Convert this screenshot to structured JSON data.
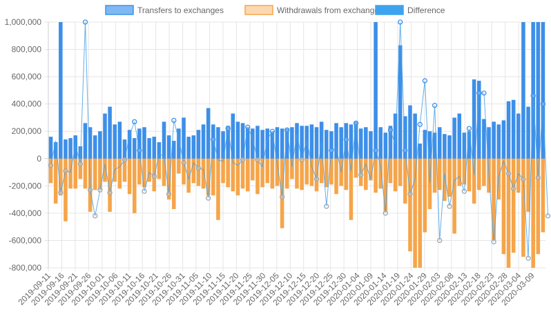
{
  "chart_data": {
    "type": "bar",
    "legend": {
      "position": "top",
      "items": [
        {
          "label": "Transfers to exchanges",
          "fill": "#7fb8f2",
          "stroke": "#3d93e8"
        },
        {
          "label": "Withdrawals from exchanges",
          "fill": "#fcd8b0",
          "stroke": "#f5a54a"
        },
        {
          "label": "Difference",
          "fill": "#3ea3ee",
          "stroke": "#3ea3ee"
        }
      ]
    },
    "colors": {
      "transfers": "#3d8fe8",
      "withdrawals": "#f5a54a",
      "difference": "#46a0e8",
      "grid": "#e5e5e5",
      "tick_text": "#666666"
    },
    "ylim": [
      -800000,
      1000000
    ],
    "yticks": [
      {
        "value": 1000000,
        "label": "1,000,000"
      },
      {
        "value": 800000,
        "label": "800,000"
      },
      {
        "value": 600000,
        "label": "600,000"
      },
      {
        "value": 400000,
        "label": "400,000"
      },
      {
        "value": 200000,
        "label": "200,000"
      },
      {
        "value": 0,
        "label": "0"
      },
      {
        "value": -200000,
        "label": "-200,000"
      },
      {
        "value": -400000,
        "label": "-400,000"
      },
      {
        "value": -600000,
        "label": "-600,000"
      },
      {
        "value": -800000,
        "label": "-800,000"
      }
    ],
    "x_tick_labels": [
      "2019-09-11",
      "2019-09-16",
      "2019-09-21",
      "2019-09-26",
      "2019-10-01",
      "2019-10-06",
      "2019-10-11",
      "2019-10-16",
      "2019-10-21",
      "2019-10-26",
      "2019-10-31",
      "2019-11-05",
      "2019-11-10",
      "2019-11-15",
      "2019-11-20",
      "2019-11-25",
      "2019-11-30",
      "2019-12-05",
      "2019-12-10",
      "2019-12-15",
      "2019-12-20",
      "2019-12-25",
      "2019-12-30",
      "2020-01-04",
      "2020-01-09",
      "2020-01-14",
      "2020-01-19",
      "2020-01-24",
      "2020-01-29",
      "2020-02-03",
      "2020-02-08",
      "2020-02-13",
      "2020-02-18",
      "2020-02-23",
      "2020-02-28",
      "2020-03-04",
      "2020-03-09"
    ],
    "series": [
      {
        "name": "Transfers to exchanges",
        "kind": "bar",
        "values": [
          160000,
          120000,
          1050000,
          140000,
          150000,
          170000,
          90000,
          260000,
          230000,
          170000,
          200000,
          330000,
          380000,
          250000,
          270000,
          140000,
          210000,
          150000,
          220000,
          230000,
          150000,
          160000,
          120000,
          270000,
          170000,
          130000,
          220000,
          300000,
          160000,
          170000,
          210000,
          250000,
          370000,
          250000,
          230000,
          200000,
          240000,
          330000,
          270000,
          260000,
          230000,
          220000,
          240000,
          210000,
          220000,
          200000,
          230000,
          220000,
          220000,
          230000,
          260000,
          240000,
          240000,
          250000,
          230000,
          270000,
          210000,
          200000,
          260000,
          230000,
          260000,
          250000,
          270000,
          220000,
          230000,
          200000,
          1050000,
          230000,
          190000,
          240000,
          330000,
          830000,
          310000,
          390000,
          330000,
          110000,
          210000,
          200000,
          190000,
          230000,
          180000,
          170000,
          300000,
          330000,
          190000,
          200000,
          580000,
          570000,
          290000,
          230000,
          270000,
          250000,
          280000,
          420000,
          430000,
          330000,
          1050000,
          380000,
          1050000,
          1050000,
          1050000
        ]
      },
      {
        "name": "Withdrawals from exchanges",
        "kind": "bar",
        "values": [
          -180000,
          -330000,
          -270000,
          -460000,
          -220000,
          -220000,
          -150000,
          -220000,
          -390000,
          -230000,
          -230000,
          -170000,
          -390000,
          -170000,
          -220000,
          -170000,
          -260000,
          -400000,
          -190000,
          -210000,
          -170000,
          -240000,
          -150000,
          -200000,
          -300000,
          -370000,
          -110000,
          -190000,
          -250000,
          -180000,
          -200000,
          -220000,
          -270000,
          -270000,
          -450000,
          -180000,
          -210000,
          -240000,
          -270000,
          -220000,
          -240000,
          -160000,
          -260000,
          -210000,
          -180000,
          -220000,
          -200000,
          -510000,
          -220000,
          -150000,
          -220000,
          -230000,
          -190000,
          -200000,
          -240000,
          -180000,
          -210000,
          -190000,
          -260000,
          -200000,
          -230000,
          -450000,
          -140000,
          -200000,
          -230000,
          -160000,
          -250000,
          -220000,
          -390000,
          -180000,
          -240000,
          -200000,
          -330000,
          -680000,
          -850000,
          -830000,
          -540000,
          -370000,
          -250000,
          -230000,
          -310000,
          -280000,
          -550000,
          -200000,
          -190000,
          -240000,
          -330000,
          -230000,
          -200000,
          -250000,
          -600000,
          -300000,
          -700000,
          -840000,
          -690000,
          -250000,
          -720000,
          -390000,
          -820000,
          -700000,
          -540000
        ]
      },
      {
        "name": "Difference",
        "kind": "line",
        "values": [
          -50000,
          130000,
          -250000,
          -90000,
          -100000,
          100000,
          -40000,
          1050000,
          -230000,
          -420000,
          -230000,
          -40000,
          -250000,
          -80000,
          -60000,
          -10000,
          170000,
          270000,
          60000,
          -240000,
          -100000,
          -130000,
          30000,
          20000,
          -260000,
          280000,
          140000,
          -30000,
          -150000,
          -30000,
          -70000,
          -80000,
          -290000,
          140000,
          -10000,
          -20000,
          220000,
          -30000,
          -50000,
          -10000,
          230000,
          150000,
          -10000,
          -60000,
          140000,
          200000,
          -40000,
          -280000,
          210000,
          -60000,
          180000,
          -10000,
          140000,
          -60000,
          -150000,
          120000,
          -350000,
          60000,
          80000,
          -100000,
          140000,
          -90000,
          260000,
          -120000,
          -40000,
          -150000,
          60000,
          -50000,
          -400000,
          210000,
          100000,
          1050000,
          60000,
          -260000,
          -150000,
          250000,
          570000,
          -180000,
          390000,
          -600000,
          -110000,
          -350000,
          -160000,
          -130000,
          -240000,
          220000,
          -120000,
          480000,
          480000,
          -110000,
          -610000,
          -130000,
          -20000,
          -110000,
          -220000,
          -110000,
          -150000,
          -730000,
          460000,
          -140000,
          400000,
          -420000
        ]
      }
    ]
  }
}
